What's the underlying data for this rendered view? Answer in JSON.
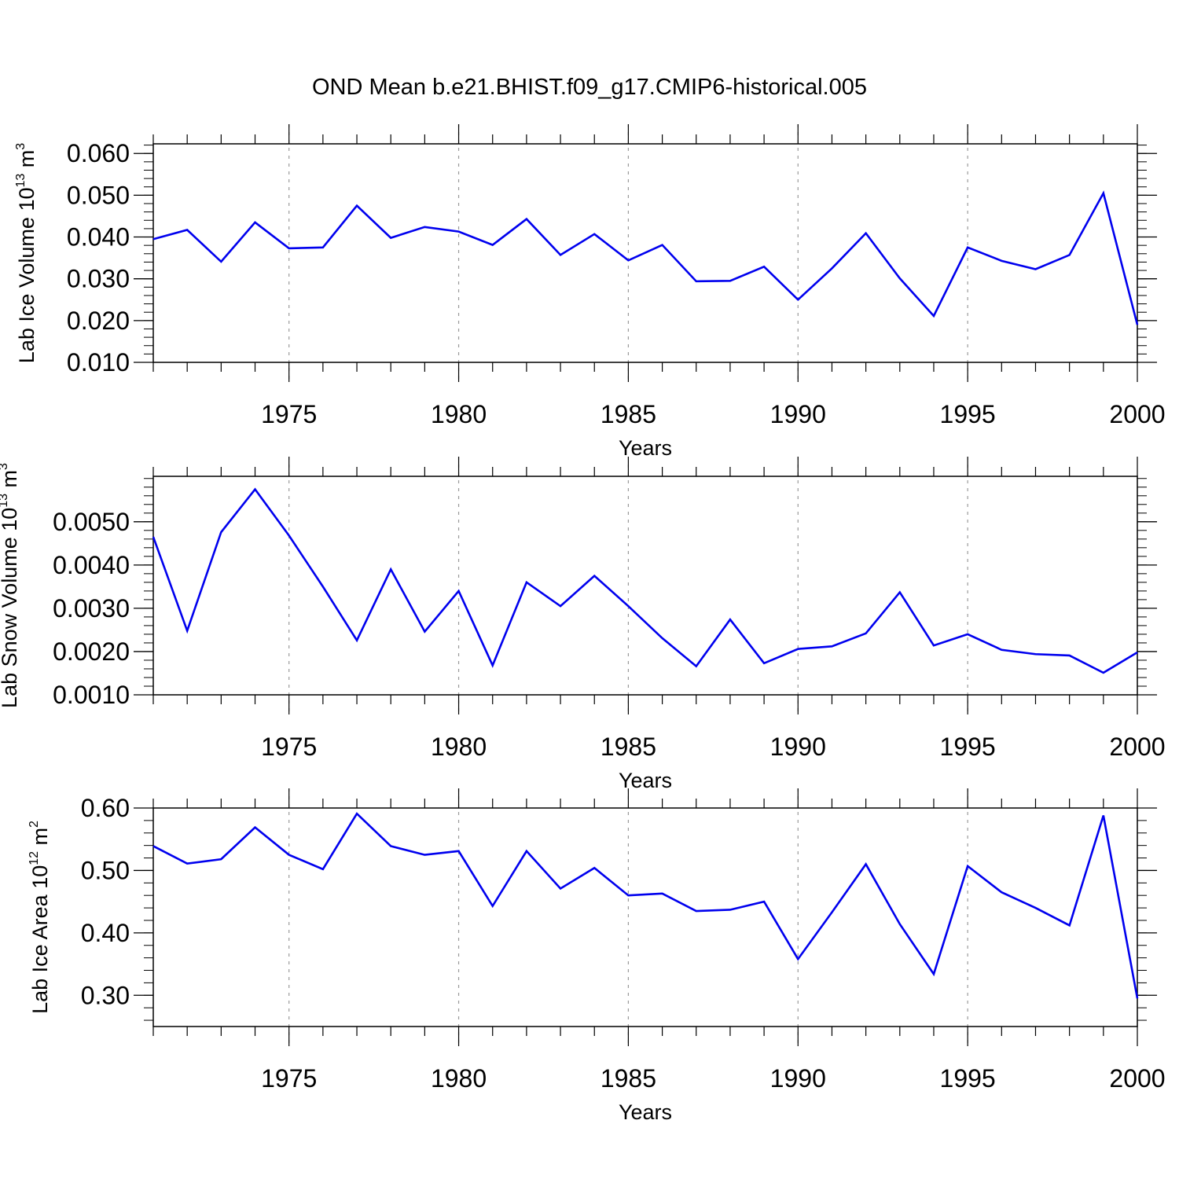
{
  "figure_title": "OND Mean b.e21.BHIST.f09_g17.CMIP6-historical.005",
  "line_color": "#0000ee",
  "chart_data": [
    {
      "type": "line",
      "title": "OND Mean b.e21.BHIST.f09_g17.CMIP6-historical.005",
      "xlabel": "Years",
      "ylabel": {
        "main": "Lab Ice Volume 10",
        "exp": "13",
        "unit": " m",
        "unit_exp": "3"
      },
      "xlim": [
        1971,
        2000
      ],
      "ylim": [
        0.01,
        0.0623
      ],
      "xticks": [
        "1975",
        "1980",
        "1985",
        "1990",
        "1995",
        "2000"
      ],
      "yticks": [
        "0.010",
        "0.020",
        "0.030",
        "0.040",
        "0.050",
        "0.060"
      ],
      "x": [
        1971,
        1972,
        1973,
        1974,
        1975,
        1976,
        1977,
        1978,
        1979,
        1980,
        1981,
        1982,
        1983,
        1984,
        1985,
        1986,
        1987,
        1988,
        1989,
        1990,
        1991,
        1992,
        1993,
        1994,
        1995,
        1996,
        1997,
        1998,
        1999,
        2000
      ],
      "series": [
        {
          "name": "Lab Ice Volume",
          "values": [
            0.0395,
            0.0417,
            0.0341,
            0.0435,
            0.0373,
            0.0375,
            0.0475,
            0.0398,
            0.0424,
            0.0413,
            0.0381,
            0.0443,
            0.0357,
            0.0407,
            0.0344,
            0.0381,
            0.0294,
            0.0295,
            0.0329,
            0.025,
            0.0325,
            0.0409,
            0.0301,
            0.0211,
            0.0375,
            0.0343,
            0.0323,
            0.0357,
            0.0505,
            0.019
          ]
        }
      ]
    },
    {
      "type": "line",
      "xlabel": "Years",
      "ylabel": {
        "main": "Lab Snow Volume 10",
        "exp": "13",
        "unit": " m",
        "unit_exp": "3"
      },
      "xlim": [
        1971,
        2000
      ],
      "ylim": [
        0.001,
        0.00605
      ],
      "xticks": [
        "1975",
        "1980",
        "1985",
        "1990",
        "1995",
        "2000"
      ],
      "yticks": [
        "0.0010",
        "0.0020",
        "0.0030",
        "0.0040",
        "0.0050"
      ],
      "x": [
        1971,
        1972,
        1973,
        1974,
        1975,
        1976,
        1977,
        1978,
        1979,
        1980,
        1981,
        1982,
        1983,
        1984,
        1985,
        1986,
        1987,
        1988,
        1989,
        1990,
        1991,
        1992,
        1993,
        1994,
        1995,
        1996,
        1997,
        1998,
        1999,
        2000
      ],
      "series": [
        {
          "name": "Lab Snow Volume",
          "values": [
            0.00465,
            0.00248,
            0.00476,
            0.00575,
            0.00468,
            0.0035,
            0.00226,
            0.0039,
            0.00246,
            0.0034,
            0.00168,
            0.0036,
            0.00305,
            0.00375,
            0.00305,
            0.00231,
            0.00166,
            0.00274,
            0.00173,
            0.00206,
            0.00212,
            0.00242,
            0.00337,
            0.00214,
            0.0024,
            0.00204,
            0.00194,
            0.00191,
            0.00151,
            0.00198
          ]
        }
      ]
    },
    {
      "type": "line",
      "xlabel": "Years",
      "ylabel": {
        "main": "Lab Ice Area 10",
        "exp": "12",
        "unit": " m",
        "unit_exp": "2"
      },
      "xlim": [
        1971,
        2000
      ],
      "ylim": [
        0.25,
        0.6
      ],
      "xticks": [
        "1975",
        "1980",
        "1985",
        "1990",
        "1995",
        "2000"
      ],
      "yticks": [
        "0.30",
        "0.40",
        "0.50",
        "0.60"
      ],
      "x": [
        1971,
        1972,
        1973,
        1974,
        1975,
        1976,
        1977,
        1978,
        1979,
        1980,
        1981,
        1982,
        1983,
        1984,
        1985,
        1986,
        1987,
        1988,
        1989,
        1990,
        1991,
        1992,
        1993,
        1994,
        1995,
        1996,
        1997,
        1998,
        1999,
        2000
      ],
      "series": [
        {
          "name": "Lab Ice Area",
          "values": [
            0.539,
            0.511,
            0.518,
            0.569,
            0.525,
            0.502,
            0.591,
            0.539,
            0.525,
            0.531,
            0.443,
            0.531,
            0.471,
            0.504,
            0.46,
            0.463,
            0.435,
            0.437,
            0.45,
            0.358,
            0.433,
            0.51,
            0.414,
            0.334,
            0.507,
            0.465,
            0.44,
            0.412,
            0.588,
            0.295
          ]
        }
      ]
    }
  ]
}
